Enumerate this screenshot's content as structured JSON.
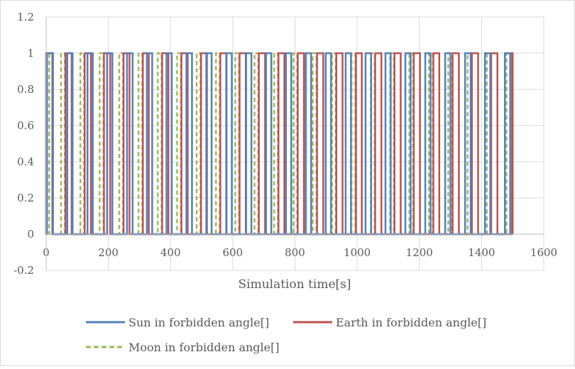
{
  "chart_data": {
    "type": "line",
    "title": "",
    "xlabel": "Simulation time[s]",
    "ylabel": "",
    "xlim": [
      0,
      1600
    ],
    "ylim": [
      -0.2,
      1.2
    ],
    "x_ticks": [
      "0",
      "200",
      "400",
      "600",
      "800",
      "1000",
      "1200",
      "1400",
      "1600"
    ],
    "y_ticks": [
      "-0.2",
      "0",
      "0.2",
      "0.4",
      "0.6",
      "0.8",
      "1",
      "1.2"
    ],
    "x_tick_values": [
      0,
      200,
      400,
      600,
      800,
      1000,
      1200,
      1400,
      1600
    ],
    "y_tick_values": [
      -0.2,
      0,
      0.2,
      0.4,
      0.6,
      0.8,
      1,
      1.2
    ],
    "grid": true,
    "legend": "bottom",
    "series": [
      {
        "name": "Sun in forbidden angle[]",
        "color": "#4f81bd",
        "style": "solid",
        "on_intervals": [
          [
            3,
            22
          ],
          [
            68,
            85
          ],
          [
            133,
            150
          ],
          [
            196,
            213
          ],
          [
            260,
            278
          ],
          [
            324,
            341
          ],
          [
            387,
            404
          ],
          [
            451,
            469
          ],
          [
            515,
            532
          ],
          [
            579,
            597
          ],
          [
            643,
            660
          ],
          [
            707,
            724
          ],
          [
            771,
            788
          ],
          [
            835,
            852
          ],
          [
            899,
            916
          ],
          [
            963,
            980
          ],
          [
            1027,
            1045
          ],
          [
            1091,
            1108
          ],
          [
            1155,
            1172
          ],
          [
            1219,
            1236
          ],
          [
            1283,
            1300
          ],
          [
            1347,
            1365
          ],
          [
            1411,
            1428
          ],
          [
            1475,
            1492
          ]
        ]
      },
      {
        "name": "Earth in forbidden angle[]",
        "color": "#c0504d",
        "style": "solid",
        "on_intervals": [
          [
            0,
            20
          ],
          [
            62,
            82
          ],
          [
            124,
            144
          ],
          [
            186,
            206
          ],
          [
            249,
            268
          ],
          [
            311,
            330
          ],
          [
            373,
            393
          ],
          [
            435,
            455
          ],
          [
            498,
            517
          ],
          [
            560,
            580
          ],
          [
            622,
            642
          ],
          [
            684,
            704
          ],
          [
            747,
            766
          ],
          [
            809,
            829
          ],
          [
            871,
            891
          ],
          [
            933,
            953
          ],
          [
            996,
            1015
          ],
          [
            1058,
            1078
          ],
          [
            1120,
            1140
          ],
          [
            1182,
            1202
          ],
          [
            1245,
            1264
          ],
          [
            1307,
            1327
          ],
          [
            1369,
            1389
          ],
          [
            1431,
            1451
          ],
          [
            1494,
            1500
          ]
        ]
      },
      {
        "name": "Moon in forbidden angle[]",
        "color": "#9bbb59",
        "style": "dashed",
        "on_intervals": [
          [
            0,
            10
          ],
          [
            48,
            60
          ],
          [
            110,
            122
          ],
          [
            172,
            184
          ],
          [
            235,
            247
          ],
          [
            297,
            309
          ],
          [
            359,
            371
          ],
          [
            421,
            433
          ],
          [
            484,
            496
          ],
          [
            546,
            558
          ],
          [
            608,
            620
          ],
          [
            670,
            682
          ],
          [
            733,
            745
          ],
          [
            795,
            807
          ],
          [
            857,
            869
          ],
          [
            919,
            931
          ],
          [
            982,
            994
          ],
          [
            1044,
            1056
          ],
          [
            1106,
            1118
          ],
          [
            1168,
            1180
          ],
          [
            1231,
            1243
          ],
          [
            1293,
            1305
          ],
          [
            1355,
            1367
          ],
          [
            1417,
            1429
          ],
          [
            1480,
            1500
          ]
        ]
      }
    ]
  }
}
